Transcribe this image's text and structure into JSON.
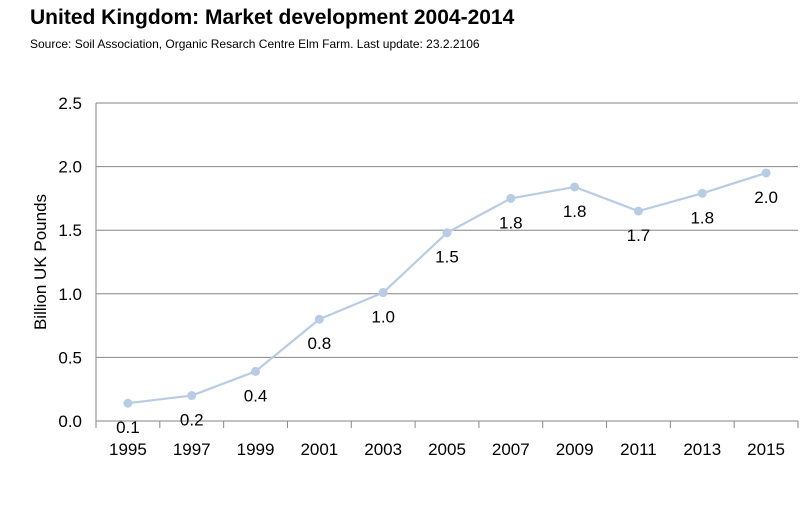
{
  "header": {
    "title": "United Kingdom: Market development 2004-2014",
    "subtitle": "Source: Soil Association, Organic Resarch Centre Elm Farm. Last update: 23.2.2106"
  },
  "chart_data": {
    "type": "line",
    "title": "United Kingdom: Market development 2004-2014",
    "subtitle": "Source: Soil Association, Organic Resarch Centre Elm Farm. Last update: 23.2.2106",
    "xlabel": "",
    "ylabel": "Billion UK Pounds",
    "categories": [
      "1995",
      "1997",
      "1999",
      "2001",
      "2003",
      "2005",
      "2007",
      "2009",
      "2011",
      "2013",
      "2015"
    ],
    "series": [
      {
        "values": [
          0.14,
          0.2,
          0.39,
          0.8,
          1.01,
          1.48,
          1.75,
          1.84,
          1.65,
          1.79,
          1.95
        ],
        "labels": [
          "0.1",
          "0.2",
          "0.4",
          "0.8",
          "1.0",
          "1.5",
          "1.8",
          "1.8",
          "1.7",
          "1.8",
          "2.0"
        ],
        "color": "#b8cce4"
      }
    ],
    "ylim": [
      0,
      2.5
    ],
    "yticks": [
      "0.0",
      "0.5",
      "1.0",
      "1.5",
      "2.0",
      "2.5"
    ],
    "grid": true,
    "gridColor": "#868686",
    "legend": "none"
  }
}
